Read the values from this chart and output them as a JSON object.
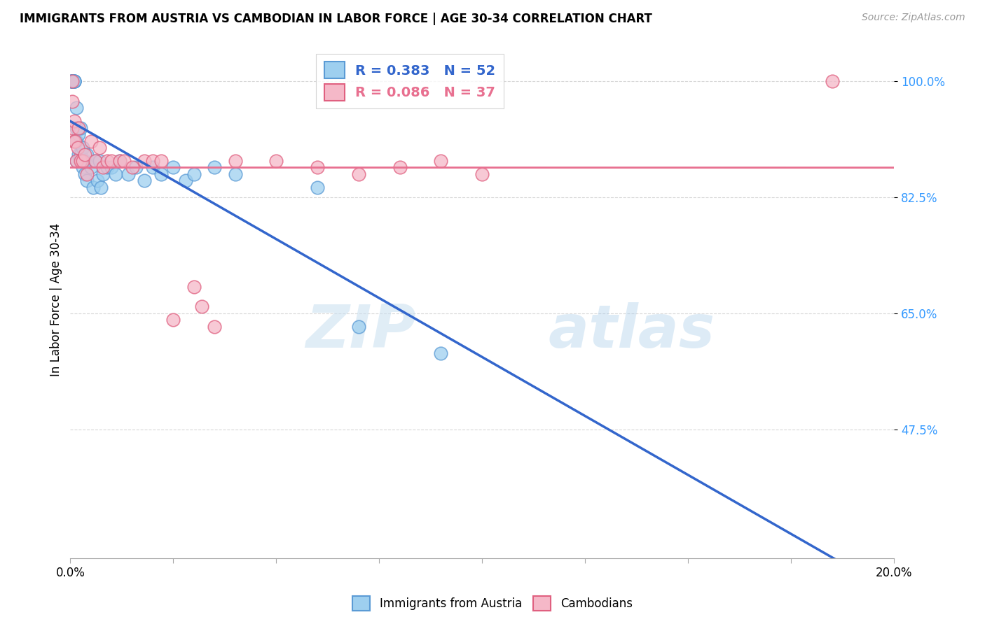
{
  "title": "IMMIGRANTS FROM AUSTRIA VS CAMBODIAN IN LABOR FORCE | AGE 30-34 CORRELATION CHART",
  "source": "Source: ZipAtlas.com",
  "ylabel": "In Labor Force | Age 30-34",
  "yticks": [
    1.0,
    0.825,
    0.65,
    0.475
  ],
  "ytick_labels": [
    "100.0%",
    "82.5%",
    "65.0%",
    "47.5%"
  ],
  "xlim": [
    0.0,
    0.2
  ],
  "ylim": [
    0.28,
    1.06
  ],
  "austria_R": 0.383,
  "austria_N": 52,
  "cambodian_R": 0.086,
  "cambodian_N": 37,
  "austria_color": "#9ECFEF",
  "cambodian_color": "#F5B8C8",
  "austria_edge_color": "#5B9BD5",
  "cambodian_edge_color": "#E06080",
  "austria_line_color": "#3366CC",
  "cambodian_line_color": "#E87090",
  "legend_label_austria": "Immigrants from Austria",
  "legend_label_cambodian": "Cambodians",
  "austria_x": [
    0.0005,
    0.0005,
    0.0005,
    0.0005,
    0.0005,
    0.0005,
    0.0005,
    0.0005,
    0.0005,
    0.0005,
    0.001,
    0.001,
    0.001,
    0.001,
    0.0015,
    0.0015,
    0.0015,
    0.0015,
    0.002,
    0.002,
    0.0025,
    0.0025,
    0.003,
    0.003,
    0.0035,
    0.0035,
    0.004,
    0.004,
    0.005,
    0.0055,
    0.006,
    0.0065,
    0.007,
    0.0075,
    0.008,
    0.009,
    0.01,
    0.011,
    0.012,
    0.014,
    0.016,
    0.018,
    0.02,
    0.022,
    0.025,
    0.028,
    0.03,
    0.035,
    0.04,
    0.06,
    0.07,
    0.09
  ],
  "austria_y": [
    1.0,
    1.0,
    1.0,
    1.0,
    1.0,
    1.0,
    1.0,
    1.0,
    1.0,
    1.0,
    1.0,
    1.0,
    1.0,
    1.0,
    0.96,
    0.93,
    0.91,
    0.88,
    0.92,
    0.89,
    0.93,
    0.89,
    0.9,
    0.87,
    0.88,
    0.86,
    0.89,
    0.85,
    0.87,
    0.84,
    0.88,
    0.85,
    0.88,
    0.84,
    0.86,
    0.87,
    0.87,
    0.86,
    0.88,
    0.86,
    0.87,
    0.85,
    0.87,
    0.86,
    0.87,
    0.85,
    0.86,
    0.87,
    0.86,
    0.84,
    0.63,
    0.59
  ],
  "cambodian_x": [
    0.0005,
    0.0005,
    0.0005,
    0.0008,
    0.001,
    0.0012,
    0.0015,
    0.0018,
    0.002,
    0.0025,
    0.003,
    0.0035,
    0.004,
    0.005,
    0.006,
    0.007,
    0.008,
    0.009,
    0.01,
    0.012,
    0.013,
    0.015,
    0.018,
    0.02,
    0.022,
    0.025,
    0.03,
    0.032,
    0.035,
    0.04,
    0.05,
    0.06,
    0.07,
    0.08,
    0.09,
    0.1,
    0.185
  ],
  "cambodian_y": [
    1.0,
    0.97,
    0.93,
    0.91,
    0.94,
    0.91,
    0.88,
    0.9,
    0.93,
    0.88,
    0.88,
    0.89,
    0.86,
    0.91,
    0.88,
    0.9,
    0.87,
    0.88,
    0.88,
    0.88,
    0.88,
    0.87,
    0.88,
    0.88,
    0.88,
    0.64,
    0.69,
    0.66,
    0.63,
    0.88,
    0.88,
    0.87,
    0.86,
    0.87,
    0.88,
    0.86,
    1.0
  ],
  "watermark_zip": "ZIP",
  "watermark_atlas": "atlas",
  "background_color": "#ffffff",
  "grid_color": "#d8d8d8"
}
